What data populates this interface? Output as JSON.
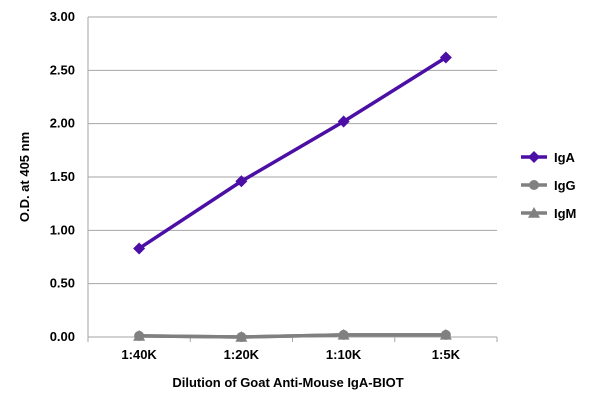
{
  "chart_data": {
    "type": "line",
    "title": "",
    "xlabel": "Dilution of Goat Anti-Mouse IgA-BIOT",
    "ylabel": "O.D. at 405 nm",
    "categories": [
      "1:40K",
      "1:20K",
      "1:10K",
      "1:5K"
    ],
    "ylim": [
      0,
      3
    ],
    "yticks": [
      "0.00",
      "0.50",
      "1.00",
      "1.50",
      "2.00",
      "2.50",
      "3.00"
    ],
    "grid": "horizontal",
    "legend_position": "right",
    "series": [
      {
        "name": "IgA",
        "values": [
          0.83,
          1.46,
          2.02,
          2.62
        ],
        "color": "#4b0fa6",
        "marker": "diamond"
      },
      {
        "name": "IgG",
        "values": [
          0.01,
          0.0,
          0.02,
          0.02
        ],
        "color": "#808080",
        "marker": "circle"
      },
      {
        "name": "IgM",
        "values": [
          0.01,
          0.0,
          0.02,
          0.02
        ],
        "color": "#808080",
        "marker": "triangle"
      }
    ]
  }
}
